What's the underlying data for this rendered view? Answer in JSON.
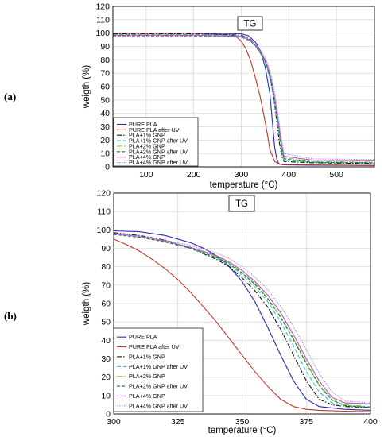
{
  "panels": {
    "a": "(a)",
    "b": "(b)"
  },
  "chart_data": [
    {
      "type": "line",
      "title": "TG",
      "xlabel": "temperature (°C)",
      "ylabel": "weigth (%)",
      "xlim": [
        30,
        580
      ],
      "ylim": [
        0,
        120
      ],
      "xticks": [
        100,
        200,
        300,
        400,
        500
      ],
      "yticks": [
        0,
        10,
        20,
        30,
        40,
        50,
        60,
        70,
        80,
        90,
        100,
        110,
        120
      ],
      "grid": true,
      "legend": "bottom-left",
      "series": [
        {
          "name": "PURE PLA",
          "color": "#2b2bb5",
          "dash": "",
          "x": [
            30,
            200,
            300,
            315,
            330,
            340,
            350,
            360,
            365,
            370,
            375,
            380,
            390,
            450,
            580
          ],
          "y": [
            100,
            100,
            99.5,
            98,
            93,
            87,
            75,
            55,
            35,
            15,
            5,
            2,
            1.5,
            1.2,
            1
          ]
        },
        {
          "name": "PURE PLA after UV",
          "color": "#c0392b",
          "dash": "",
          "x": [
            30,
            200,
            280,
            290,
            300,
            310,
            320,
            330,
            340,
            350,
            355,
            360,
            370,
            380,
            450,
            580
          ],
          "y": [
            100,
            100,
            98.5,
            97,
            94,
            88,
            79,
            66,
            52,
            34,
            24,
            13,
            4,
            2,
            1.5,
            1
          ]
        },
        {
          "name": "PLA+1% GNP",
          "color": "#111111",
          "dash": "6,2,1.5,2",
          "x": [
            30,
            200,
            300,
            320,
            330,
            340,
            350,
            355,
            360,
            365,
            370,
            375,
            380,
            385,
            390,
            450,
            580
          ],
          "y": [
            99.5,
            99.5,
            98.5,
            95,
            91,
            86,
            79,
            74,
            67,
            58,
            46,
            33,
            18,
            8,
            4,
            3,
            2.5
          ]
        },
        {
          "name": "PLA+1% GNP after UV",
          "color": "#2ec4d6",
          "dash": "5,3",
          "x": [
            30,
            200,
            300,
            320,
            330,
            340,
            350,
            355,
            360,
            365,
            370,
            375,
            380,
            385,
            390,
            450,
            580
          ],
          "y": [
            99,
            99,
            98,
            94,
            90,
            85,
            78,
            73,
            66,
            58,
            47,
            35,
            22,
            11,
            5,
            3.5,
            3
          ]
        },
        {
          "name": "PLA+2% GNP",
          "color": "#8ccf2e",
          "dash": "7,2,1.5,2,1.5,2",
          "x": [
            30,
            200,
            300,
            320,
            330,
            340,
            350,
            355,
            360,
            365,
            370,
            375,
            380,
            385,
            390,
            450,
            580
          ],
          "y": [
            98.5,
            98.5,
            97.5,
            94.5,
            91,
            86,
            79.5,
            75,
            69,
            61,
            51,
            40,
            27,
            15,
            7,
            4,
            3.5
          ]
        },
        {
          "name": "PLA+2% GNP after UV",
          "color": "#1a7a1a",
          "dash": "4,2",
          "x": [
            30,
            200,
            300,
            320,
            330,
            340,
            350,
            355,
            360,
            365,
            370,
            375,
            380,
            385,
            390,
            450,
            580
          ],
          "y": [
            98,
            98,
            97,
            94,
            90.5,
            85.5,
            79,
            74.5,
            68,
            60,
            50,
            38,
            25,
            13,
            6,
            3.5,
            3
          ]
        },
        {
          "name": "PLA+4% GNP",
          "color": "#c44bd6",
          "dash": "",
          "x": [
            30,
            200,
            300,
            320,
            330,
            340,
            350,
            355,
            360,
            365,
            370,
            375,
            380,
            385,
            390,
            450,
            580
          ],
          "y": [
            98.5,
            98.5,
            97.5,
            94.5,
            91,
            86.5,
            80,
            75.5,
            69.5,
            62,
            52,
            41,
            28,
            16,
            8,
            5,
            4.5
          ]
        },
        {
          "name": "PLA+4% GNP after UV",
          "color": "#9a9ad0",
          "dash": "1.5,1.5",
          "x": [
            30,
            200,
            300,
            320,
            330,
            340,
            350,
            355,
            360,
            365,
            370,
            375,
            380,
            385,
            390,
            450,
            580
          ],
          "y": [
            97.5,
            97.5,
            97,
            94.5,
            91.5,
            87.5,
            82,
            77.5,
            72,
            65,
            56,
            45,
            32,
            20,
            10,
            6,
            5.5
          ]
        }
      ]
    },
    {
      "type": "line",
      "title": "TG",
      "xlabel": "temperature (°C)",
      "ylabel": "weigth (%)",
      "xlim": [
        300,
        400
      ],
      "ylim": [
        0,
        120
      ],
      "xticks": [
        300,
        325,
        350,
        375,
        400
      ],
      "yticks": [
        0,
        10,
        20,
        30,
        40,
        50,
        60,
        70,
        80,
        90,
        100,
        110,
        120
      ],
      "grid": true,
      "legend": "bottom-left",
      "series": [
        {
          "name": "PURE PLA",
          "color": "#2b2bb5",
          "dash": "",
          "x": [
            300,
            310,
            320,
            330,
            335,
            340,
            345,
            350,
            355,
            360,
            365,
            370,
            375,
            380,
            390,
            400
          ],
          "y": [
            99.5,
            99,
            97,
            93,
            90,
            86,
            80,
            72,
            61,
            47,
            32,
            18,
            8,
            4,
            2.5,
            2
          ]
        },
        {
          "name": "PURE PLA after UV",
          "color": "#c0392b",
          "dash": "",
          "x": [
            300,
            305,
            310,
            315,
            320,
            325,
            330,
            335,
            340,
            345,
            350,
            355,
            360,
            365,
            370,
            375,
            380,
            390,
            400
          ],
          "y": [
            95,
            92,
            88.5,
            84,
            79,
            73,
            66,
            58,
            50,
            41,
            32,
            23,
            15,
            8,
            4,
            2.5,
            2,
            1.5,
            1.2
          ]
        },
        {
          "name": "PLA+1% GNP",
          "color": "#111111",
          "dash": "6,2,1.5,2",
          "x": [
            300,
            310,
            320,
            330,
            340,
            345,
            350,
            355,
            360,
            365,
            370,
            375,
            380,
            385,
            390,
            400
          ],
          "y": [
            98.5,
            97,
            94.5,
            90,
            84,
            80,
            74,
            67,
            58,
            46,
            32,
            18,
            8,
            5,
            4,
            3.5
          ]
        },
        {
          "name": "PLA+1% GNP after UV",
          "color": "#2ec4d6",
          "dash": "5,3",
          "x": [
            300,
            310,
            320,
            330,
            340,
            345,
            350,
            355,
            360,
            365,
            370,
            375,
            380,
            385,
            390,
            400
          ],
          "y": [
            98,
            96.5,
            94,
            90,
            84.5,
            81,
            75.5,
            69,
            61,
            50,
            37,
            23,
            12,
            6,
            4.5,
            4
          ]
        },
        {
          "name": "PLA+2% GNP",
          "color": "#8ccf2e",
          "dash": "7,2,1.5,2,1.5,2",
          "x": [
            300,
            310,
            320,
            330,
            340,
            345,
            350,
            355,
            360,
            365,
            370,
            375,
            380,
            385,
            390,
            400
          ],
          "y": [
            98,
            96.5,
            94,
            90.5,
            85.5,
            82,
            77,
            71,
            63,
            53,
            41,
            28,
            16,
            8,
            5,
            4
          ]
        },
        {
          "name": "PLA+2% GNP after UV",
          "color": "#1a7a1a",
          "dash": "4,2",
          "x": [
            300,
            310,
            320,
            330,
            340,
            345,
            350,
            355,
            360,
            365,
            370,
            375,
            380,
            385,
            390,
            400
          ],
          "y": [
            97.5,
            96,
            93.5,
            90,
            85,
            81.5,
            76.5,
            70.5,
            62.5,
            52.5,
            40.5,
            27.5,
            15.5,
            7.5,
            4.5,
            3.5
          ]
        },
        {
          "name": "PLA+4% GNP",
          "color": "#c44bd6",
          "dash": "",
          "x": [
            300,
            310,
            320,
            330,
            340,
            345,
            350,
            355,
            360,
            365,
            370,
            375,
            380,
            385,
            390,
            400
          ],
          "y": [
            98,
            96.5,
            94,
            90.5,
            86,
            82.5,
            78,
            72,
            64.5,
            55,
            43,
            30,
            18,
            9,
            6,
            5.5
          ]
        },
        {
          "name": "PLA+4% GNP after UV",
          "color": "#9a9ad0",
          "dash": "1.5,1.5",
          "x": [
            300,
            310,
            320,
            330,
            340,
            345,
            350,
            355,
            360,
            365,
            370,
            375,
            380,
            385,
            390,
            400
          ],
          "y": [
            97.5,
            96.5,
            94.5,
            91.5,
            87.5,
            84.5,
            80,
            74.5,
            67.5,
            58.5,
            47.5,
            35,
            22,
            12,
            7,
            6
          ]
        }
      ]
    }
  ]
}
